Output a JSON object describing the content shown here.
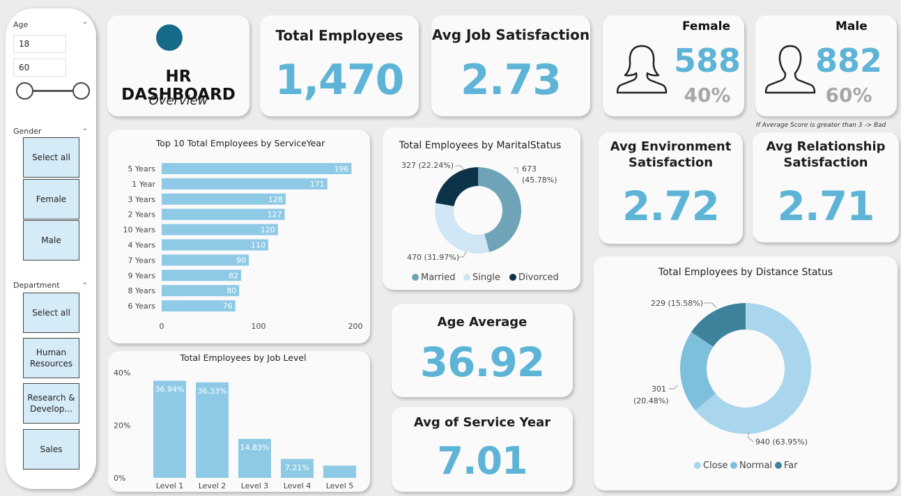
{
  "slicer": {
    "age": {
      "label": "Age",
      "min": "18",
      "max": "60"
    },
    "gender": {
      "label": "Gender",
      "items": [
        "Select all",
        "Female",
        "Male"
      ]
    },
    "department": {
      "label": "Department",
      "items": [
        "Select all",
        "Human Resources",
        "Research & Develop...",
        "Sales"
      ]
    }
  },
  "header": {
    "title": "HR DASHBOARD",
    "subtitle": "Overview",
    "logo_color": "#156a87"
  },
  "kpis": {
    "total_employees": {
      "title": "Total Employees",
      "value": "1,470"
    },
    "avg_job_satisfaction": {
      "title": "Avg Job Satisfaction",
      "value": "2.73"
    },
    "female": {
      "title": "Female",
      "count": "588",
      "pct": "40%"
    },
    "male": {
      "title": "Male",
      "count": "882",
      "pct": "60%"
    },
    "note": "If Average Score is greater than 3 -> Bad",
    "avg_environment": {
      "title_line1": "Avg Environment",
      "title_line2": "Satisfaction",
      "value": "2.72"
    },
    "avg_relationship": {
      "title_line1": "Avg Relationship",
      "title_line2": "Satisfaction",
      "value": "2.71"
    },
    "age_average": {
      "title": "Age Average",
      "value": "36.92"
    },
    "avg_service_year": {
      "title": "Avg of Service Year",
      "value": "7.01"
    }
  },
  "colors": {
    "accent": "#5db4d6",
    "bar": "#8ecae6",
    "married": "#6fa3b8",
    "single": "#d0e6f4",
    "divorced": "#0d3349",
    "close": "#a9d6ec",
    "normal": "#7cc0db",
    "far": "#3f829c"
  },
  "chart_data": [
    {
      "type": "bar",
      "orientation": "horizontal",
      "title": "Top 10 Total Employees by ServiceYear",
      "categories": [
        "5 Years",
        "1 Year",
        "3 Years",
        "2 Years",
        "10 Years",
        "4 Years",
        "7 Years",
        "9 Years",
        "8 Years",
        "6 Years"
      ],
      "values": [
        196,
        171,
        128,
        127,
        120,
        110,
        90,
        82,
        80,
        76
      ],
      "xlim": [
        0,
        200
      ],
      "xticks": [
        "0",
        "100",
        "200"
      ]
    },
    {
      "type": "pie",
      "donut": true,
      "title": "Total Employees by MaritalStatus",
      "categories": [
        "Married",
        "Single",
        "Divorced"
      ],
      "values": [
        673,
        470,
        327
      ],
      "labels": [
        "673 (45.78%)",
        "470 (31.97%)",
        "327 (22.24%)"
      ],
      "legend": "bottom"
    },
    {
      "type": "bar",
      "title": "Total Employees by Job Level",
      "categories": [
        "Level 1",
        "Level 2",
        "Level 3",
        "Level 4",
        "Level 5"
      ],
      "values": [
        36.94,
        36.33,
        14.83,
        7.21,
        4.69
      ],
      "data_labels": [
        "36.94%",
        "36.33%",
        "14.83%",
        "7.21%",
        ""
      ],
      "ylim": [
        0,
        40
      ],
      "yticks": [
        "0%",
        "20%",
        "40%"
      ]
    },
    {
      "type": "pie",
      "donut": true,
      "title": "Total Employees by Distance Status",
      "categories": [
        "Close",
        "Normal",
        "Far"
      ],
      "values": [
        940,
        301,
        229
      ],
      "labels": [
        "940 (63.95%)",
        "301 (20.48%)",
        "229 (15.58%)"
      ],
      "legend": "bottom"
    }
  ]
}
